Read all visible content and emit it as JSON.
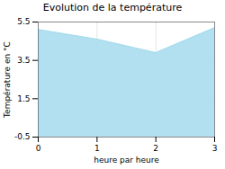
{
  "chart_data": {
    "type": "area",
    "title": "Evolution de la température",
    "xlabel": "heure par heure",
    "ylabel": "Température en °C",
    "x": [
      0,
      1,
      2,
      3
    ],
    "values": [
      5.1,
      4.6,
      3.9,
      5.2
    ],
    "color": "#aaddee",
    "xlim": [
      0,
      3
    ],
    "ylim": [
      -0.5,
      5.5
    ],
    "xticks": [
      0,
      1,
      2,
      3
    ],
    "yticks": [
      -0.5,
      1.5,
      3.5,
      5.5
    ],
    "grid": true
  }
}
